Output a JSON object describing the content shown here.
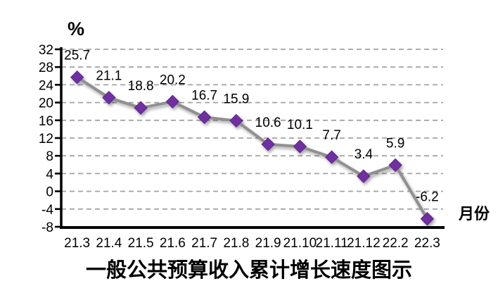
{
  "chart_data": {
    "type": "line",
    "title": "一般公共预算收入累计增长速度图示",
    "xlabel": "月份",
    "ylabel": "%",
    "categories": [
      "21.3",
      "21.4",
      "21.5",
      "21.6",
      "21.7",
      "21.8",
      "21.9",
      "21.10",
      "21.11",
      "21.12",
      "22.2",
      "22.3"
    ],
    "values": [
      25.7,
      21.1,
      18.8,
      20.2,
      16.7,
      15.9,
      10.6,
      10.1,
      7.7,
      3.4,
      5.9,
      -6.2
    ],
    "data_labels": [
      "25.7",
      "21.1",
      "18.8",
      "20.2",
      "16.7",
      "15.9",
      "10.6",
      "10.1",
      "7.7",
      "3.4",
      "5.9",
      "-6.2"
    ],
    "ylim": [
      -8,
      32
    ],
    "y_tick_step": 4,
    "y_ticks": [
      32,
      28,
      24,
      20,
      16,
      12,
      8,
      4,
      0,
      -4,
      -8
    ],
    "grid": "horizontal-dashed",
    "legend": "none",
    "marker_shape": "diamond",
    "colors": {
      "marker": "#7030A0",
      "marker_edge": "#5C2586",
      "line": "#909090",
      "gridline": "#A3A3A3",
      "axis": "#000000",
      "text": "#000000",
      "background": "#FFFFFF"
    }
  }
}
